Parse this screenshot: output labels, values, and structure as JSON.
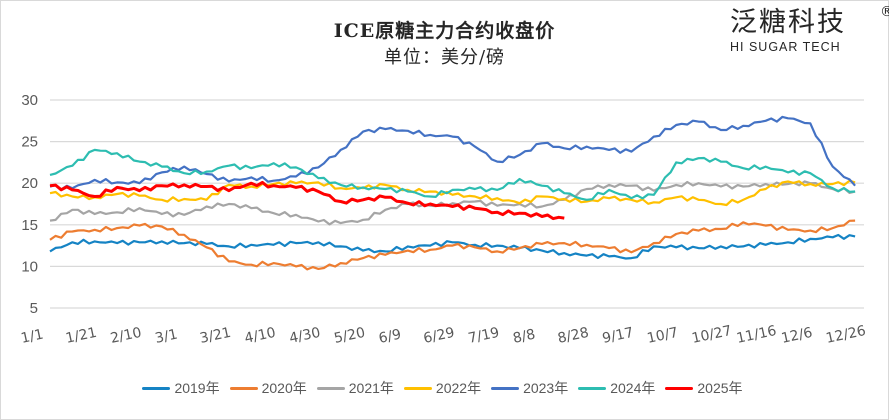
{
  "chart_data": {
    "type": "line",
    "title": "ICE原糖主力合约收盘价",
    "subtitle": "单位：美分/磅",
    "xlabel": "",
    "ylabel": "",
    "ylim": [
      5,
      30
    ],
    "yticks": [
      "30",
      "25",
      "20",
      "15",
      "10",
      "5"
    ],
    "ytick_values": [
      30,
      25,
      20,
      15,
      10,
      5
    ],
    "grid": true,
    "legend_position": "bottom",
    "x_tick_labels": [
      "1/1",
      "1/21",
      "2/10",
      "3/1",
      "3/21",
      "4/10",
      "4/30",
      "5/20",
      "6/9",
      "6/29",
      "7/19",
      "8/8",
      "8/28",
      "9/17",
      "10/7",
      "10/27",
      "11/16",
      "12/6",
      "12/26"
    ],
    "x_day_step": 10,
    "series": [
      {
        "name": "2019年",
        "color": "#1583c4",
        "values": [
          11.8,
          12.9,
          13.0,
          12.8,
          12.9,
          13.0,
          12.8,
          12.7,
          12.4,
          12.6,
          12.6,
          12.8,
          12.9,
          12.4,
          11.9,
          11.8,
          12.4,
          12.5,
          12.9,
          12.6,
          12.5,
          12.2,
          11.9,
          11.6,
          11.3,
          11.2,
          11.0,
          12.4,
          12.3,
          12.2,
          12.4,
          12.4,
          12.6,
          12.9,
          13.3,
          13.5,
          13.6
        ]
      },
      {
        "name": "2020年",
        "color": "#ed7d31",
        "values": [
          13.2,
          14.2,
          14.4,
          14.6,
          14.9,
          14.8,
          13.8,
          12.3,
          10.6,
          10.2,
          10.4,
          10.0,
          9.7,
          10.4,
          11.0,
          11.4,
          11.9,
          12.0,
          12.5,
          12.3,
          11.8,
          12.2,
          12.7,
          12.8,
          12.6,
          12.2,
          11.7,
          12.8,
          13.9,
          14.3,
          14.5,
          15.3,
          14.9,
          14.4,
          14.3,
          14.6,
          15.5
        ]
      },
      {
        "name": "2021年",
        "color": "#a5a5a5",
        "values": [
          15.5,
          16.8,
          16.3,
          16.5,
          17.0,
          16.3,
          16.2,
          17.2,
          17.5,
          17.0,
          16.4,
          16.2,
          15.4,
          15.2,
          15.6,
          16.8,
          17.5,
          17.3,
          17.6,
          17.8,
          17.3,
          17.5,
          17.2,
          18.0,
          19.3,
          19.8,
          19.7,
          19.1,
          19.8,
          20.0,
          19.6,
          19.6,
          19.9,
          19.9,
          20.0,
          19.3,
          19.0
        ]
      },
      {
        "name": "2022年",
        "color": "#ffc000",
        "values": [
          18.8,
          18.4,
          18.3,
          18.7,
          18.5,
          18.0,
          18.1,
          18.0,
          19.8,
          19.6,
          19.9,
          20.0,
          20.1,
          19.4,
          19.4,
          19.8,
          19.2,
          19.0,
          18.6,
          18.4,
          18.2,
          17.6,
          18.4,
          18.1,
          17.8,
          18.2,
          18.0,
          17.7,
          18.3,
          18.0,
          17.5,
          18.0,
          19.3,
          20.2,
          19.9,
          19.9,
          20.1
        ]
      },
      {
        "name": "2023年",
        "color": "#4472c4",
        "values": [
          19.6,
          19.4,
          20.4,
          20.1,
          20.0,
          21.3,
          22.0,
          21.1,
          20.2,
          20.7,
          20.3,
          20.8,
          21.9,
          24.0,
          26.2,
          26.5,
          26.3,
          25.8,
          25.6,
          24.4,
          22.6,
          23.4,
          24.8,
          24.2,
          24.4,
          24.0,
          23.8,
          25.6,
          27.0,
          27.4,
          26.4,
          26.9,
          27.5,
          27.8,
          27.2,
          22.0,
          19.7
        ]
      },
      {
        "name": "2024年",
        "color": "#2dbdb1",
        "values": [
          21.0,
          22.1,
          24.0,
          23.6,
          22.6,
          22.0,
          21.2,
          21.4,
          22.1,
          21.8,
          22.4,
          21.9,
          20.6,
          19.8,
          19.5,
          19.3,
          19.0,
          18.4,
          19.2,
          19.3,
          19.2,
          20.5,
          19.7,
          18.8,
          18.0,
          19.2,
          18.2,
          18.6,
          22.5,
          23.0,
          22.6,
          21.8,
          22.0,
          21.3,
          21.2,
          19.4,
          19.0
        ]
      },
      {
        "name": "2025年",
        "color": "#ff0000",
        "values": [
          19.7,
          19.2,
          18.4,
          19.5,
          19.1,
          19.7,
          19.8,
          19.6,
          19.1,
          20.0,
          19.7,
          19.5,
          19.0,
          17.8,
          18.0,
          18.3,
          17.6,
          17.5,
          17.2,
          17.0,
          16.5,
          16.4,
          16.0,
          15.8
        ]
      }
    ]
  },
  "logo": {
    "cn": "泛糖科技",
    "en": "HI SUGAR TECH",
    "reg": "®"
  }
}
